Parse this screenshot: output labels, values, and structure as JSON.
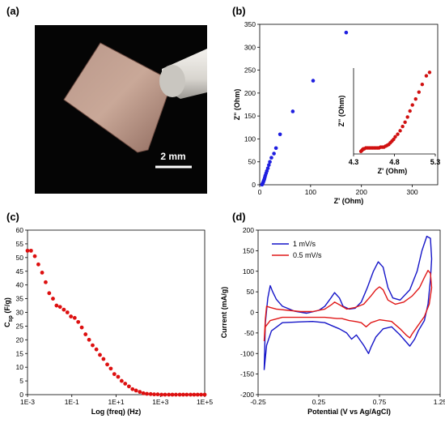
{
  "panel_labels": [
    "(a)",
    "(b)",
    "(c)",
    "(d)"
  ],
  "photo": {
    "scale_text": "2 mm"
  },
  "chart_data": [
    {
      "panel": "(b)",
      "type": "scatter",
      "xlabel": "Z' (Ohm)",
      "ylabel": "Z\" (Ohm)",
      "xlim": [
        0,
        350
      ],
      "ylim": [
        0,
        350
      ],
      "xticks": [
        "0",
        "100",
        "200",
        "300"
      ],
      "yticks": [
        "0",
        "50",
        "100",
        "150",
        "200",
        "250",
        "300",
        "350"
      ],
      "marker_color": "#1f1fe0",
      "series": [
        {
          "points": [
            [
              4.5,
              0.3
            ],
            [
              5,
              1
            ],
            [
              5.5,
              2
            ],
            [
              6,
              3.5
            ],
            [
              7,
              6
            ],
            [
              8,
              9
            ],
            [
              9,
              12
            ],
            [
              10,
              16
            ],
            [
              11,
              20
            ],
            [
              12.5,
              25
            ],
            [
              14,
              30
            ],
            [
              16,
              36
            ],
            [
              18,
              43
            ],
            [
              20,
              50
            ],
            [
              23,
              59
            ],
            [
              28,
              68
            ],
            [
              32,
              80
            ],
            [
              40,
              110
            ],
            [
              65,
              160
            ],
            [
              105,
              227
            ],
            [
              170,
              332
            ]
          ]
        }
      ],
      "inset": {
        "xlabel": "Z' (Ohm)",
        "ylabel": "Z\" (Ohm)",
        "xlim": [
          4.3,
          5.3
        ],
        "ylim": [
          0,
          1.0
        ],
        "xticks": [
          "4.3",
          "4.8",
          "5.3"
        ],
        "marker_color": "#d01010",
        "points": [
          [
            4.39,
            0.03
          ],
          [
            4.4,
            0.04
          ],
          [
            4.41,
            0.05
          ],
          [
            4.42,
            0.06
          ],
          [
            4.43,
            0.06
          ],
          [
            4.45,
            0.07
          ],
          [
            4.47,
            0.07
          ],
          [
            4.49,
            0.07
          ],
          [
            4.51,
            0.07
          ],
          [
            4.53,
            0.07
          ],
          [
            4.55,
            0.07
          ],
          [
            4.57,
            0.07
          ],
          [
            4.59,
            0.07
          ],
          [
            4.61,
            0.07
          ],
          [
            4.63,
            0.08
          ],
          [
            4.65,
            0.08
          ],
          [
            4.67,
            0.08
          ],
          [
            4.69,
            0.09
          ],
          [
            4.71,
            0.1
          ],
          [
            4.73,
            0.11
          ],
          [
            4.75,
            0.13
          ],
          [
            4.77,
            0.15
          ],
          [
            4.79,
            0.17
          ],
          [
            4.81,
            0.2
          ],
          [
            4.84,
            0.23
          ],
          [
            4.87,
            0.27
          ],
          [
            4.9,
            0.32
          ],
          [
            4.93,
            0.37
          ],
          [
            4.96,
            0.43
          ],
          [
            4.99,
            0.5
          ],
          [
            5.02,
            0.57
          ],
          [
            5.06,
            0.64
          ],
          [
            5.1,
            0.72
          ],
          [
            5.14,
            0.81
          ],
          [
            5.19,
            0.91
          ],
          [
            5.23,
            0.95
          ]
        ]
      }
    },
    {
      "panel": "(c)",
      "type": "scatter",
      "xlabel": "Log (freq) (Hz)",
      "ylabel": "C_sp (F/g)",
      "ylabel_main": "C",
      "ylabel_sub": "sp",
      "ylabel_rest": " (F/g)",
      "xscale": "log",
      "xlim": [
        -3,
        5
      ],
      "ylim": [
        0,
        60
      ],
      "xticks": [
        "1E-3",
        "1E-1",
        "1E+1",
        "1E+3",
        "1E+5"
      ],
      "yticks": [
        "0",
        "5",
        "10",
        "15",
        "20",
        "25",
        "30",
        "35",
        "40",
        "45",
        "50",
        "55",
        "60"
      ],
      "marker_color": "#dd1010",
      "series": [
        {
          "points": [
            [
              -3,
              52.5
            ],
            [
              -2.84,
              52.5
            ],
            [
              -2.67,
              50.5
            ],
            [
              -2.51,
              47.5
            ],
            [
              -2.34,
              44.5
            ],
            [
              -2.18,
              41
            ],
            [
              -2.02,
              37
            ],
            [
              -1.85,
              35
            ],
            [
              -1.69,
              32.5
            ],
            [
              -1.53,
              32
            ],
            [
              -1.36,
              31
            ],
            [
              -1.2,
              30
            ],
            [
              -1.04,
              28.5
            ],
            [
              -0.87,
              28
            ],
            [
              -0.71,
              26.5
            ],
            [
              -0.55,
              24.5
            ],
            [
              -0.38,
              22
            ],
            [
              -0.22,
              20
            ],
            [
              -0.06,
              18
            ],
            [
              0.11,
              16.5
            ],
            [
              0.27,
              14.5
            ],
            [
              0.43,
              13
            ],
            [
              0.6,
              11
            ],
            [
              0.76,
              9.5
            ],
            [
              0.92,
              7.5
            ],
            [
              1.09,
              6.5
            ],
            [
              1.25,
              5
            ],
            [
              1.41,
              4
            ],
            [
              1.58,
              3
            ],
            [
              1.74,
              2
            ],
            [
              1.9,
              1.5
            ],
            [
              2.07,
              1
            ],
            [
              2.23,
              0.5
            ],
            [
              2.39,
              0.3
            ],
            [
              2.56,
              0.2
            ],
            [
              2.72,
              0.1
            ],
            [
              2.88,
              0.1
            ],
            [
              3.05,
              0
            ],
            [
              3.21,
              0
            ],
            [
              3.38,
              0
            ],
            [
              3.54,
              0
            ],
            [
              3.7,
              0
            ],
            [
              3.87,
              0
            ],
            [
              4.03,
              0
            ],
            [
              4.19,
              0
            ],
            [
              4.36,
              0
            ],
            [
              4.52,
              0
            ],
            [
              4.68,
              0
            ],
            [
              4.84,
              0
            ],
            [
              5,
              0
            ]
          ]
        }
      ]
    },
    {
      "panel": "(d)",
      "type": "line",
      "xlabel": "Potential (V vs Ag/AgCl)",
      "ylabel": "Current (mA/g)",
      "xlim": [
        -0.25,
        1.25
      ],
      "ylim": [
        -200,
        200
      ],
      "xticks": [
        "-0.25",
        "0.25",
        "0.75",
        "1.25"
      ],
      "yticks": [
        "-200",
        "-150",
        "-100",
        "-50",
        "0",
        "50",
        "100",
        "150",
        "200"
      ],
      "legend": "upper-left",
      "series": [
        {
          "name": "1 mV/s",
          "color": "#1515c8",
          "points": [
            [
              -0.2,
              -140
            ],
            [
              -0.19,
              -25
            ],
            [
              -0.17,
              35
            ],
            [
              -0.15,
              65
            ],
            [
              -0.13,
              50
            ],
            [
              -0.1,
              32
            ],
            [
              -0.05,
              15
            ],
            [
              0.05,
              3
            ],
            [
              0.15,
              -2
            ],
            [
              0.25,
              5
            ],
            [
              0.3,
              15
            ],
            [
              0.35,
              35
            ],
            [
              0.38,
              48
            ],
            [
              0.42,
              35
            ],
            [
              0.45,
              15
            ],
            [
              0.5,
              8
            ],
            [
              0.55,
              10
            ],
            [
              0.6,
              25
            ],
            [
              0.65,
              60
            ],
            [
              0.7,
              100
            ],
            [
              0.74,
              123
            ],
            [
              0.78,
              110
            ],
            [
              0.82,
              60
            ],
            [
              0.86,
              35
            ],
            [
              0.92,
              30
            ],
            [
              1.0,
              55
            ],
            [
              1.06,
              100
            ],
            [
              1.1,
              150
            ],
            [
              1.14,
              185
            ],
            [
              1.17,
              180
            ],
            [
              1.18,
              130
            ],
            [
              1.17,
              80
            ],
            [
              1.15,
              20
            ],
            [
              1.12,
              -20
            ],
            [
              1.07,
              -45
            ],
            [
              1.04,
              -65
            ],
            [
              1.0,
              -82
            ],
            [
              0.97,
              -72
            ],
            [
              0.92,
              -55
            ],
            [
              0.85,
              -35
            ],
            [
              0.78,
              -40
            ],
            [
              0.72,
              -60
            ],
            [
              0.68,
              -85
            ],
            [
              0.66,
              -100
            ],
            [
              0.62,
              -80
            ],
            [
              0.56,
              -55
            ],
            [
              0.52,
              -65
            ],
            [
              0.48,
              -50
            ],
            [
              0.42,
              -40
            ],
            [
              0.38,
              -35
            ],
            [
              0.3,
              -25
            ],
            [
              0.2,
              -22
            ],
            [
              0.1,
              -23
            ],
            [
              -0.05,
              -25
            ],
            [
              -0.14,
              -45
            ],
            [
              -0.18,
              -80
            ],
            [
              -0.2,
              -140
            ]
          ]
        },
        {
          "name": "0.5 mV/s",
          "color": "#e01818",
          "points": [
            [
              -0.2,
              -70
            ],
            [
              -0.19,
              -15
            ],
            [
              -0.18,
              15
            ],
            [
              -0.15,
              12
            ],
            [
              -0.1,
              8
            ],
            [
              0,
              5
            ],
            [
              0.1,
              2
            ],
            [
              0.2,
              2
            ],
            [
              0.3,
              8
            ],
            [
              0.36,
              20
            ],
            [
              0.38,
              25
            ],
            [
              0.43,
              17
            ],
            [
              0.48,
              8
            ],
            [
              0.55,
              12
            ],
            [
              0.62,
              20
            ],
            [
              0.68,
              40
            ],
            [
              0.72,
              55
            ],
            [
              0.75,
              62
            ],
            [
              0.78,
              55
            ],
            [
              0.82,
              30
            ],
            [
              0.88,
              20
            ],
            [
              0.95,
              25
            ],
            [
              1.02,
              40
            ],
            [
              1.08,
              60
            ],
            [
              1.12,
              85
            ],
            [
              1.15,
              102
            ],
            [
              1.17,
              95
            ],
            [
              1.18,
              60
            ],
            [
              1.16,
              20
            ],
            [
              1.12,
              -10
            ],
            [
              1.06,
              -35
            ],
            [
              1.02,
              -52
            ],
            [
              1.0,
              -62
            ],
            [
              0.97,
              -55
            ],
            [
              0.92,
              -40
            ],
            [
              0.85,
              -22
            ],
            [
              0.75,
              -18
            ],
            [
              0.68,
              -25
            ],
            [
              0.64,
              -35
            ],
            [
              0.6,
              -25
            ],
            [
              0.55,
              -22
            ],
            [
              0.5,
              -20
            ],
            [
              0.44,
              -15
            ],
            [
              0.4,
              -15
            ],
            [
              0.3,
              -12
            ],
            [
              0.1,
              -12
            ],
            [
              -0.05,
              -12
            ],
            [
              -0.15,
              -20
            ],
            [
              -0.19,
              -35
            ],
            [
              -0.2,
              -70
            ]
          ]
        }
      ]
    }
  ]
}
